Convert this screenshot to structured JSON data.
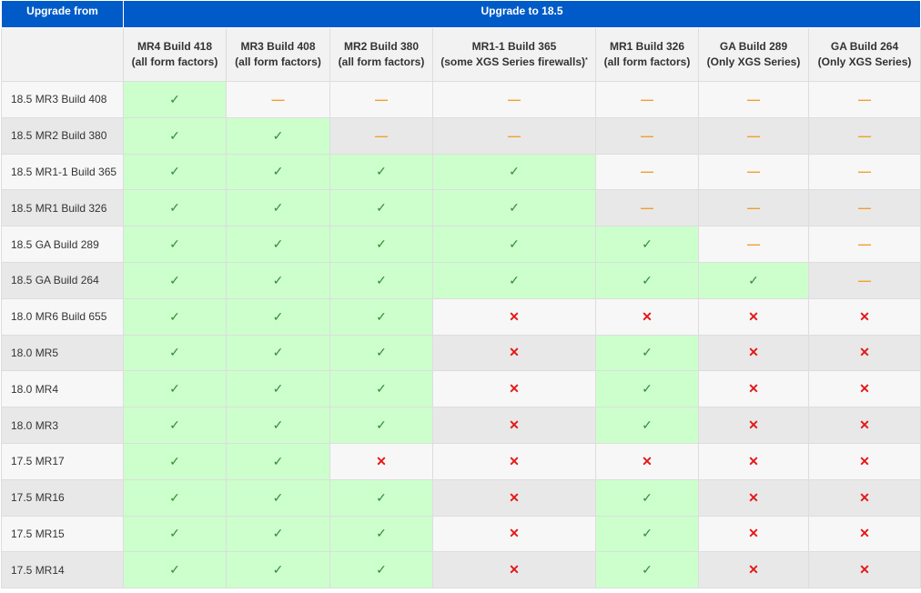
{
  "header": {
    "upgrade_from": "Upgrade from",
    "upgrade_to": "Upgrade to 18.5"
  },
  "columns": [
    {
      "line1": "MR4 Build 418",
      "line2": "(all form factors)",
      "note": ""
    },
    {
      "line1": "MR3 Build 408",
      "line2": "(all form factors)",
      "note": ""
    },
    {
      "line1": "MR2 Build 380",
      "line2": "(all form factors)",
      "note": ""
    },
    {
      "line1": "MR1-1 Build 365",
      "line2": "(some XGS Series firewalls)",
      "note": "*"
    },
    {
      "line1": "MR1 Build 326",
      "line2": "(all form factors)",
      "note": ""
    },
    {
      "line1": "GA Build 289",
      "line2": "(Only XGS Series)",
      "note": ""
    },
    {
      "line1": "GA Build 264",
      "line2": "(Only XGS Series)",
      "note": ""
    }
  ],
  "symbols": {
    "yes": "✓",
    "not_applicable": "—",
    "no": "✕"
  },
  "colors": {
    "header_blue": "#005bc8",
    "supported_green": "#ccffcc",
    "check_green": "#3a8a3a",
    "dash_orange": "#f0a030",
    "cross_red": "#e41818"
  },
  "rows": [
    {
      "from": "18.5 MR3 Build 408",
      "cells": [
        "yes",
        "na",
        "na",
        "na",
        "na",
        "na",
        "na"
      ]
    },
    {
      "from": "18.5 MR2 Build 380",
      "cells": [
        "yes",
        "yes",
        "na",
        "na",
        "na",
        "na",
        "na"
      ]
    },
    {
      "from": "18.5 MR1-1 Build 365",
      "cells": [
        "yes",
        "yes",
        "yes",
        "yes",
        "na",
        "na",
        "na"
      ]
    },
    {
      "from": "18.5 MR1 Build 326",
      "cells": [
        "yes",
        "yes",
        "yes",
        "yes",
        "na",
        "na",
        "na"
      ]
    },
    {
      "from": "18.5 GA Build 289",
      "cells": [
        "yes",
        "yes",
        "yes",
        "yes",
        "yes",
        "na",
        "na"
      ]
    },
    {
      "from": "18.5 GA Build 264",
      "cells": [
        "yes",
        "yes",
        "yes",
        "yes",
        "yes",
        "yes",
        "na"
      ]
    },
    {
      "from": "18.0 MR6 Build 655",
      "cells": [
        "yes",
        "yes",
        "yes",
        "no",
        "no",
        "no",
        "no"
      ]
    },
    {
      "from": "18.0 MR5",
      "cells": [
        "yes",
        "yes",
        "yes",
        "no",
        "yes",
        "no",
        "no"
      ]
    },
    {
      "from": "18.0 MR4",
      "cells": [
        "yes",
        "yes",
        "yes",
        "no",
        "yes",
        "no",
        "no"
      ]
    },
    {
      "from": "18.0 MR3",
      "cells": [
        "yes",
        "yes",
        "yes",
        "no",
        "yes",
        "no",
        "no"
      ]
    },
    {
      "from": "17.5 MR17",
      "cells": [
        "yes",
        "yes",
        "no",
        "no",
        "no",
        "no",
        "no"
      ]
    },
    {
      "from": "17.5 MR16",
      "cells": [
        "yes",
        "yes",
        "yes",
        "no",
        "yes",
        "no",
        "no"
      ]
    },
    {
      "from": "17.5 MR15",
      "cells": [
        "yes",
        "yes",
        "yes",
        "no",
        "yes",
        "no",
        "no"
      ]
    },
    {
      "from": "17.5 MR14",
      "cells": [
        "yes",
        "yes",
        "yes",
        "no",
        "yes",
        "no",
        "no"
      ]
    }
  ]
}
